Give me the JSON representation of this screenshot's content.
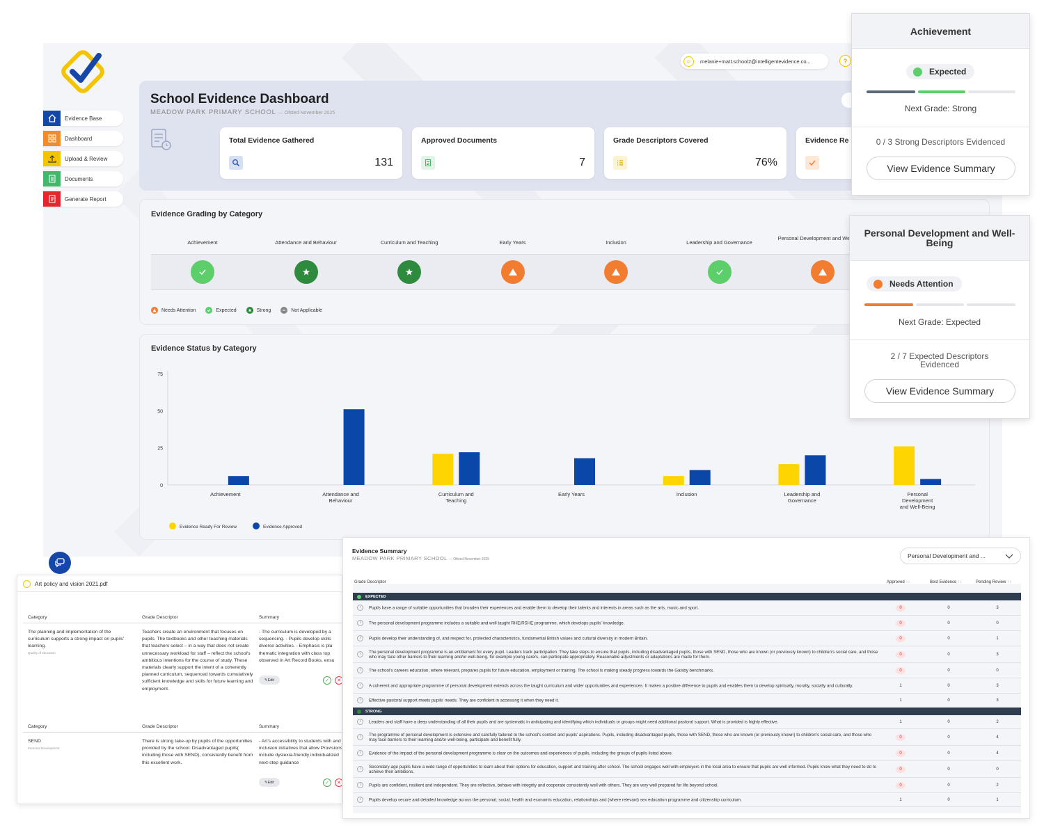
{
  "app": {
    "user_email": "melanie+mat1school2@intelligentevidence.co...",
    "sidebar": [
      {
        "label": "Evidence Base",
        "icon": "home-icon",
        "color": "#1547a8"
      },
      {
        "label": "Dashboard",
        "icon": "grid-icon",
        "color": "#f28c28"
      },
      {
        "label": "Upload & Review",
        "icon": "upload-icon",
        "color": "#f5c400"
      },
      {
        "label": "Documents",
        "icon": "document-icon",
        "color": "#43b86a"
      },
      {
        "label": "Generate Report",
        "icon": "report-icon",
        "color": "#e0282e"
      }
    ]
  },
  "header": {
    "title": "School Evidence Dashboard",
    "school": "MEADOW PARK PRIMARY SCHOOL",
    "ofsted": "— Ofsted November 2025"
  },
  "stats": [
    {
      "label": "Total Evidence Gathered",
      "value": "131",
      "icon": "search-icon",
      "color": "#d7e0f3"
    },
    {
      "label": "Approved Documents",
      "value": "7",
      "icon": "document-icon",
      "color": "#e2f3e7"
    },
    {
      "label": "Grade Descriptors Covered",
      "value": "76%",
      "icon": "list-icon",
      "color": "#fbf3d3"
    },
    {
      "label": "Evidence Re",
      "value": "",
      "icon": "check-icon",
      "color": "#fde8d8"
    }
  ],
  "grading": {
    "title": "Evidence Grading by Category",
    "categories": [
      {
        "name": "Achievement",
        "status": "expected"
      },
      {
        "name": "Attendance and Behaviour",
        "status": "strong"
      },
      {
        "name": "Curriculum and Teaching",
        "status": "strong"
      },
      {
        "name": "Early Years",
        "status": "needs"
      },
      {
        "name": "Inclusion",
        "status": "needs"
      },
      {
        "name": "Leadership and Governance",
        "status": "expected"
      },
      {
        "name": "Personal Development and Well-Being",
        "status": "needs"
      }
    ],
    "legend": [
      "Needs Attention",
      "Expected",
      "Strong",
      "Not Applicable"
    ],
    "colors": {
      "needs": "#f27c2f",
      "expected": "#5cce6a",
      "strong": "#2e8b3e",
      "na": "#888888"
    }
  },
  "status_chart_title": "Evidence Status by Category",
  "chart_data": {
    "type": "bar",
    "title": "Evidence Status by Category",
    "categories": [
      "Achievement",
      "Attendance and Behaviour",
      "Curriculum and Teaching",
      "Early Years",
      "Inclusion",
      "Leadership and Governance",
      "Personal Development and Well-Being"
    ],
    "series": [
      {
        "name": "Evidence Ready For Review",
        "color": "#ffd500",
        "values": [
          0,
          0,
          21,
          0,
          6,
          14,
          26
        ]
      },
      {
        "name": "Evidence Approved",
        "color": "#0a47a8",
        "values": [
          6,
          51,
          22,
          18,
          10,
          20,
          4
        ]
      }
    ],
    "ylim": [
      0,
      75
    ],
    "yticks": [
      0,
      25,
      50,
      75
    ],
    "legend": "bottom-left",
    "grid": false
  },
  "popup_achievement": {
    "title": "Achievement",
    "status": "Expected",
    "next_grade": "Next Grade: Strong",
    "descriptors": "0 / 3 Strong Descriptors Evidenced",
    "button": "View Evidence Summary"
  },
  "popup_pd": {
    "title": "Personal Development and Well-Being",
    "status": "Needs Attention",
    "next_grade": "Next Grade: Expected",
    "descriptors": "2 / 7 Expected Descriptors Evidenced",
    "button": "View Evidence Summary"
  },
  "detail": {
    "file": "Art policy and vision 2021.pdf",
    "col_category": "Category",
    "col_descriptor": "Grade Descriptor",
    "col_summary": "Summary",
    "edit": "Edit",
    "rows": [
      {
        "category": "The planning and implementation of the curriculum supports a strong impact on pupils' learning.",
        "category_sub": "Quality of education",
        "descriptor": "Teachers create an environment that focuses on pupils. The textbooks and other teaching materials that teachers select – in a way that does not create unnecessary workload for staff – reflect the school's ambitious intentions for the course of study. These materials clearly support the intent of a coherently planned curriculum, sequenced towards cumulatively sufficient knowledge and skills for future learning and employment.",
        "summary": "- The curriculum is developed by a sequencing. - Pupils develop skills diverse activities. - Emphasis is pla thematic integration with class top observed in Art Record Books, ensu"
      },
      {
        "category": "SEND",
        "category_sub": "Personal Development",
        "descriptor": "There is strong take-up by pupils of the opportunities provided by the school. Disadvantaged pupils( including those with SEND), consistently benefit from this excellent work.",
        "summary": "- Art's accessibility to students with and inclusion initiatives that allow Provisions include dyslexia-friendly individualized next-step guidance"
      }
    ]
  },
  "summary": {
    "title": "Evidence Summary",
    "school": "MEADOW PARK PRIMARY SCHOOL",
    "ofsted": "— Ofsted November 2025",
    "select": "Personal Development and ...",
    "columns": {
      "descriptor": "Grade Descriptor",
      "approved": "Approved",
      "best": "Best Evidence",
      "pending": "Pending Review"
    },
    "groups": [
      {
        "name": "EXPECTED",
        "dot": "#5cce6a",
        "rows": [
          {
            "text": "Pupils have a range of suitable opportunities that broaden their experiences and enable them to develop their talents and interests in areas such as the arts, music and sport.",
            "approved": "0",
            "best": "0",
            "pending": "3",
            "h": 22
          },
          {
            "text": "The personal development programme includes a suitable and well taught RHE/RSHE programme, which develops pupils' knowledge.",
            "approved": "0",
            "best": "0",
            "pending": "0",
            "h": 22
          },
          {
            "text": "Pupils develop their understanding of, and respect for, protected characteristics, fundamental British values and cultural diversity in modern Britain.",
            "approved": "0",
            "best": "0",
            "pending": "1",
            "h": 22
          },
          {
            "text": "The personal development programme is an entitlement for every pupil. Leaders track participation. They take steps to ensure that pupils, including disadvantaged pupils, those with SEND, those who are known (or previously known) to children's social care, and those who may face other barriers to their learning and/or well-being, for example young carers, can participate appropriately. Reasonable adjustments or adaptations are made for them.",
            "approved": "0",
            "best": "0",
            "pending": "3",
            "h": 24
          },
          {
            "text": "The school's careers education, where relevant, prepares pupils for future education, employment or training. The school is making steady progress towards the Gatsby benchmarks.",
            "approved": "0",
            "best": "0",
            "pending": "0",
            "h": 22
          },
          {
            "text": "A coherent and appropriate programme of personal development extends across the taught curriculum and wider opportunities and experiences. It makes a positive difference to pupils and enables them to develop spiritually, morally, socially and culturally.",
            "approved": "1",
            "best": "0",
            "pending": "3",
            "h": 22
          },
          {
            "text": "Effective pastoral support meets pupils' needs. They are confident in accessing it when they need it.",
            "approved": "1",
            "best": "0",
            "pending": "3",
            "h": 20
          }
        ]
      },
      {
        "name": "STRONG",
        "dot": "#2e8b3e",
        "rows": [
          {
            "text": "Leaders and staff have a deep understanding of all their pupils and are systematic in anticipating and identifying which individuals or groups might need additional pastoral support. What is provided is highly effective.",
            "approved": "1",
            "best": "0",
            "pending": "2",
            "h": 20
          },
          {
            "text": "The programme of personal development is extensive and carefully tailored to the school's context and pupils' aspirations. Pupils, including disadvantaged pupils, those with SEND, those who are known (or previously known) to children's social care, and those who may face barriers to their learning and/or well-being, participate and benefit fully.",
            "approved": "0",
            "best": "0",
            "pending": "4",
            "h": 24
          },
          {
            "text": "Evidence of the impact of the personal development programme is clear on the outcomes and experiences of pupils, including the groups of pupils listed above.",
            "approved": "0",
            "best": "0",
            "pending": "4",
            "h": 22
          },
          {
            "text": "Secondary-age pupils have a wide range of opportunities to learn about their options for education, support and training after school. The school engages well with employers in the local area to ensure that pupils are well informed. Pupils know what they need to do to achieve their ambitions.",
            "approved": "0",
            "best": "0",
            "pending": "0",
            "h": 24
          },
          {
            "text": "Pupils are confident, resilient and independent. They are reflective, behave with integrity and cooperate consistently well with others. They are very well prepared for life beyond school.",
            "approved": "0",
            "best": "0",
            "pending": "2",
            "h": 22
          },
          {
            "text": "Pupils develop secure and detailed knowledge across the personal, social, health and economic education, relationships and (where relevant) sex education programme and citizenship curriculum.",
            "approved": "1",
            "best": "0",
            "pending": "1",
            "h": 20
          }
        ]
      }
    ]
  }
}
